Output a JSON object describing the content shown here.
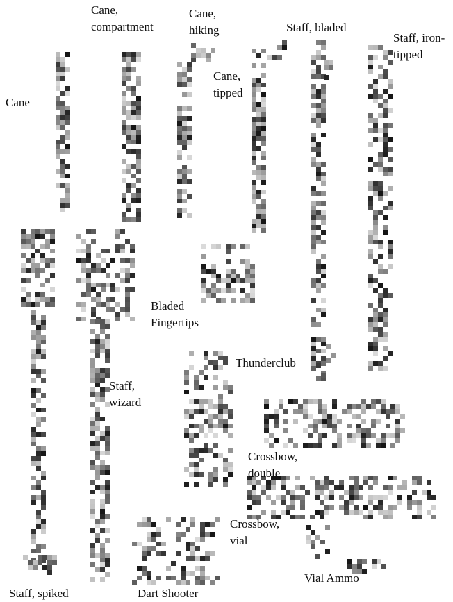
{
  "labels": [
    {
      "lines": [
        "Cane"
      ]
    },
    {
      "lines": [
        "Cane,",
        "compartment"
      ]
    },
    {
      "lines": [
        "Cane,",
        "hiking"
      ]
    },
    {
      "lines": [
        "Cane,",
        "tipped"
      ]
    },
    {
      "lines": [
        "Staff, bladed"
      ]
    },
    {
      "lines": [
        "Staff, iron-",
        "tipped"
      ]
    },
    {
      "lines": [
        "Bladed",
        "Fingertips"
      ]
    },
    {
      "lines": [
        "Thunderclub"
      ]
    },
    {
      "lines": [
        "Staff,",
        "wizard"
      ]
    },
    {
      "lines": [
        "Crossbow,",
        "double"
      ]
    },
    {
      "lines": [
        "Crossbow,",
        "vial"
      ]
    },
    {
      "lines": [
        "Vial Ammo"
      ]
    },
    {
      "lines": [
        "Staff, spiked"
      ]
    },
    {
      "lines": [
        "Dart Shooter"
      ]
    }
  ]
}
